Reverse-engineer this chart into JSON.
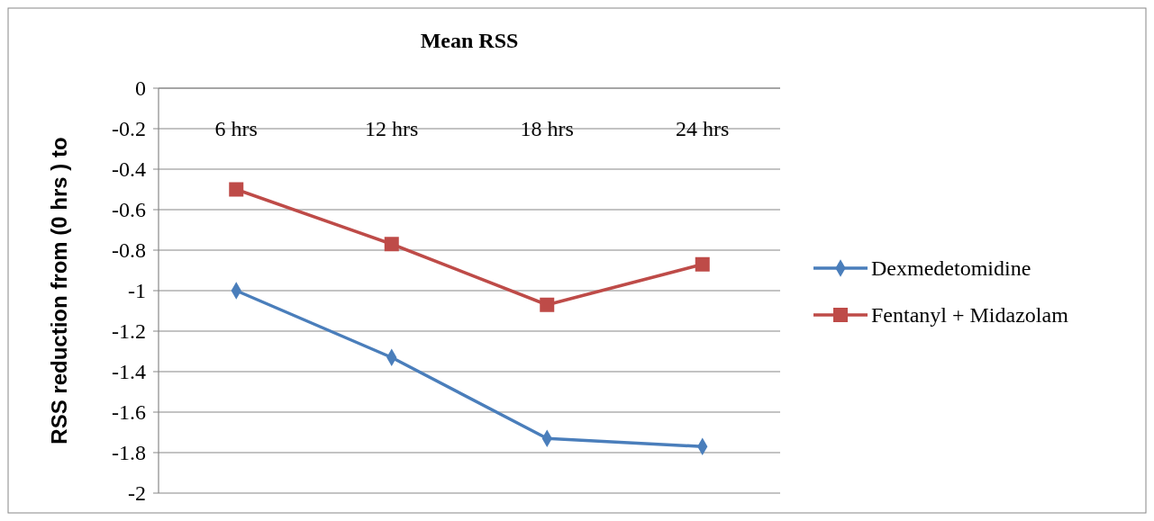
{
  "chart_data": {
    "type": "line",
    "title": "Mean RSS",
    "ylabel": "RSS reduction from (0 hrs ) to",
    "categories": [
      "6 hrs",
      "12 hrs",
      "18 hrs",
      "24 hrs"
    ],
    "series": [
      {
        "name": "Dexmedetomidine",
        "color": "#4a7ebb",
        "marker": "diamond",
        "values": [
          -1.0,
          -1.33,
          -1.73,
          -1.77
        ]
      },
      {
        "name": "Fentanyl + Midazolam",
        "color": "#be4b48",
        "marker": "square",
        "values": [
          -0.5,
          -0.77,
          -1.07,
          -0.87
        ]
      }
    ],
    "ylim": [
      -2,
      0
    ],
    "yticks": [
      0,
      -0.2,
      -0.4,
      -0.6,
      -0.8,
      -1,
      -1.2,
      -1.4,
      -1.6,
      -1.8,
      -2
    ],
    "grid": "y",
    "legend": "right",
    "line_style": "solid"
  }
}
